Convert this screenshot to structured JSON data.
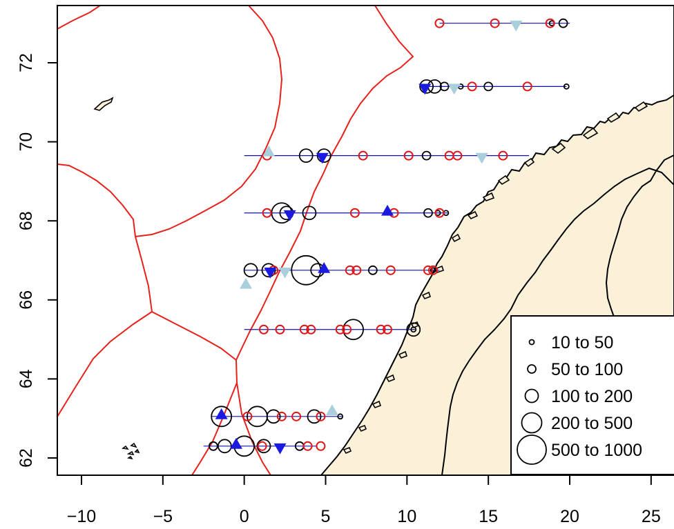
{
  "map": {
    "x_ticks": [
      "−10",
      "−5",
      "0",
      "5",
      "10",
      "15",
      "20",
      "25"
    ],
    "y_ticks": [
      "62",
      "64",
      "66",
      "68",
      "70",
      "72"
    ],
    "x_tick_values": [
      -10,
      -5,
      0,
      5,
      10,
      15,
      20,
      25
    ],
    "y_tick_values": [
      62,
      64,
      66,
      68,
      70,
      72
    ],
    "xlim": [
      -11.5,
      26
    ],
    "ylim": [
      61.55,
      73.45
    ],
    "colors": {
      "land": "#fbf1d9",
      "coast": "#000000",
      "eez_border": "#e8201a",
      "transect": "#1010b0",
      "circle_black": "#000000",
      "circle_red": "#e01515",
      "triangle_up": "#1a1ae0",
      "triangle_down_lightblue": "#a9cfdc",
      "triangle_down_blue": "#1a1ae0"
    }
  },
  "legend": {
    "title": "",
    "items": [
      {
        "label": "10 to 50",
        "size_index": 0
      },
      {
        "label": "50 to 100",
        "size_index": 1
      },
      {
        "label": "100 to 200",
        "size_index": 2
      },
      {
        "label": "200 to 500",
        "size_index": 3
      },
      {
        "label": "500 to 1000",
        "size_index": 4
      }
    ]
  },
  "chart_data": {
    "type": "scatter",
    "title": "",
    "xlabel": "",
    "ylabel": "",
    "xlim": [
      -11.5,
      26
    ],
    "ylim": [
      61.55,
      73.45
    ],
    "size_classes": [
      "10 to 50",
      "50 to 100",
      "100 to 200",
      "200 to 500",
      "500 to 1000"
    ],
    "transects": [
      {
        "lat": 73.0,
        "lon_start": 12.0,
        "lon_end": 20.0
      },
      {
        "lat": 71.4,
        "lon_start": 11.0,
        "lon_end": 19.8
      },
      {
        "lat": 69.65,
        "lon_start": 0.0,
        "lon_end": 17.5
      },
      {
        "lat": 68.2,
        "lon_start": 0.0,
        "lon_end": 12.5
      },
      {
        "lat": 66.75,
        "lon_start": 0.0,
        "lon_end": 12.0
      },
      {
        "lat": 65.25,
        "lon_start": 0.0,
        "lon_end": 10.5
      },
      {
        "lat": 63.05,
        "lon_start": -2.0,
        "lon_end": 6.0
      },
      {
        "lat": 62.3,
        "lon_start": -2.5,
        "lon_end": 4.5
      }
    ],
    "black_circles": [
      {
        "lon": 19.6,
        "lat": 73.0,
        "size": 1
      },
      {
        "lon": 18.9,
        "lat": 73.0,
        "size": 0
      },
      {
        "lon": 11.2,
        "lat": 71.4,
        "size": 2
      },
      {
        "lon": 11.7,
        "lat": 71.4,
        "size": 2
      },
      {
        "lon": 12.3,
        "lat": 71.4,
        "size": 1
      },
      {
        "lon": 13.3,
        "lat": 71.4,
        "size": 0
      },
      {
        "lon": 15.0,
        "lat": 71.4,
        "size": 1
      },
      {
        "lon": 19.8,
        "lat": 71.4,
        "size": 0
      },
      {
        "lon": 3.8,
        "lat": 69.65,
        "size": 2
      },
      {
        "lon": 4.9,
        "lat": 69.65,
        "size": 2
      },
      {
        "lon": 11.2,
        "lat": 69.65,
        "size": 1
      },
      {
        "lon": 2.3,
        "lat": 68.2,
        "size": 3
      },
      {
        "lon": 2.6,
        "lat": 68.2,
        "size": 2
      },
      {
        "lon": 4.0,
        "lat": 68.2,
        "size": 2
      },
      {
        "lon": 11.3,
        "lat": 68.2,
        "size": 1
      },
      {
        "lon": 11.9,
        "lat": 68.2,
        "size": 0
      },
      {
        "lon": 12.4,
        "lat": 68.2,
        "size": 0
      },
      {
        "lon": 0.4,
        "lat": 66.75,
        "size": 2
      },
      {
        "lon": 1.5,
        "lat": 66.75,
        "size": 2
      },
      {
        "lon": 3.8,
        "lat": 66.75,
        "size": 4
      },
      {
        "lon": 4.5,
        "lat": 66.75,
        "size": 2
      },
      {
        "lon": 7.9,
        "lat": 66.75,
        "size": 1
      },
      {
        "lon": 11.6,
        "lat": 66.75,
        "size": 0
      },
      {
        "lon": 6.7,
        "lat": 65.25,
        "size": 3
      },
      {
        "lon": 10.4,
        "lat": 65.25,
        "size": 2
      },
      {
        "lon": 10.4,
        "lat": 65.25,
        "size": 0
      },
      {
        "lon": -1.4,
        "lat": 63.05,
        "size": 3
      },
      {
        "lon": 0.8,
        "lat": 63.05,
        "size": 3
      },
      {
        "lon": 1.8,
        "lat": 63.05,
        "size": 2
      },
      {
        "lon": 4.3,
        "lat": 63.05,
        "size": 2
      },
      {
        "lon": 5.9,
        "lat": 63.05,
        "size": 0
      },
      {
        "lon": -1.9,
        "lat": 62.3,
        "size": 1
      },
      {
        "lon": -1.2,
        "lat": 62.3,
        "size": 2
      },
      {
        "lon": 0.0,
        "lat": 62.3,
        "size": 3
      },
      {
        "lon": 1.2,
        "lat": 62.3,
        "size": 2
      },
      {
        "lon": 3.4,
        "lat": 62.3,
        "size": 1
      }
    ],
    "red_circles": [
      {
        "lon": 12.0,
        "lat": 73.0
      },
      {
        "lon": 15.4,
        "lat": 73.0
      },
      {
        "lon": 18.8,
        "lat": 73.0
      },
      {
        "lon": 14.0,
        "lat": 71.4
      },
      {
        "lon": 17.4,
        "lat": 71.4
      },
      {
        "lon": 1.4,
        "lat": 69.65
      },
      {
        "lon": 7.3,
        "lat": 69.65
      },
      {
        "lon": 10.1,
        "lat": 69.65
      },
      {
        "lon": 12.6,
        "lat": 69.65
      },
      {
        "lon": 13.1,
        "lat": 69.65
      },
      {
        "lon": 15.9,
        "lat": 69.65
      },
      {
        "lon": 1.4,
        "lat": 68.2
      },
      {
        "lon": 6.8,
        "lat": 68.2
      },
      {
        "lon": 9.2,
        "lat": 68.2
      },
      {
        "lon": 12.0,
        "lat": 68.2
      },
      {
        "lon": 1.8,
        "lat": 66.75
      },
      {
        "lon": 6.5,
        "lat": 66.75
      },
      {
        "lon": 6.9,
        "lat": 66.75
      },
      {
        "lon": 9.0,
        "lat": 66.75
      },
      {
        "lon": 11.3,
        "lat": 66.75
      },
      {
        "lon": 11.6,
        "lat": 66.75
      },
      {
        "lon": 1.2,
        "lat": 65.25
      },
      {
        "lon": 2.2,
        "lat": 65.25
      },
      {
        "lon": 3.7,
        "lat": 65.25
      },
      {
        "lon": 4.1,
        "lat": 65.25
      },
      {
        "lon": 5.9,
        "lat": 65.25
      },
      {
        "lon": 6.3,
        "lat": 65.25
      },
      {
        "lon": 8.4,
        "lat": 65.25
      },
      {
        "lon": 8.8,
        "lat": 65.25
      },
      {
        "lon": 0.2,
        "lat": 63.05
      },
      {
        "lon": 2.3,
        "lat": 63.05
      },
      {
        "lon": 3.2,
        "lat": 63.05
      },
      {
        "lon": 4.7,
        "lat": 63.05
      },
      {
        "lon": 1.1,
        "lat": 62.3
      },
      {
        "lon": 3.9,
        "lat": 62.3
      },
      {
        "lon": 4.7,
        "lat": 62.3
      }
    ],
    "triangles_up": [
      {
        "lon": 8.8,
        "lat": 68.25
      },
      {
        "lon": 4.9,
        "lat": 66.8
      },
      {
        "lon": -1.4,
        "lat": 63.1
      },
      {
        "lon": -0.5,
        "lat": 62.35
      }
    ],
    "triangles_down": [
      {
        "lon": 11.1,
        "lat": 71.35
      },
      {
        "lon": 4.8,
        "lat": 69.6
      },
      {
        "lon": 2.8,
        "lat": 68.15
      },
      {
        "lon": 1.6,
        "lat": 66.7
      },
      {
        "lon": 2.2,
        "lat": 62.25
      }
    ],
    "triangles_up_lightblue": [
      {
        "lon": 1.5,
        "lat": 69.75
      },
      {
        "lon": 0.1,
        "lat": 66.4
      },
      {
        "lon": 5.4,
        "lat": 63.2
      }
    ],
    "triangles_down_lightblue": [
      {
        "lon": 16.7,
        "lat": 72.95
      },
      {
        "lon": 12.9,
        "lat": 71.35
      },
      {
        "lon": 14.6,
        "lat": 69.6
      },
      {
        "lon": 2.5,
        "lat": 66.7
      }
    ]
  }
}
